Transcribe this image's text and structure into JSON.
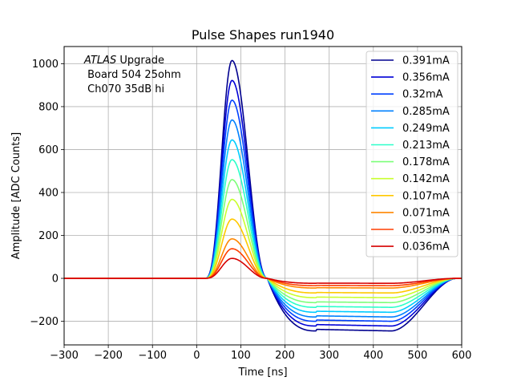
{
  "chart_data": {
    "type": "line",
    "title": "Pulse Shapes run1940",
    "xlabel": "Time [ns]",
    "ylabel": "Amplitude [ADC Counts]",
    "xlim": [
      -300,
      600
    ],
    "ylim": [
      -310,
      1080
    ],
    "xticks": [
      -300,
      -200,
      -100,
      0,
      100,
      200,
      300,
      400,
      500,
      600
    ],
    "yticks": [
      -200,
      0,
      200,
      400,
      600,
      800,
      1000
    ],
    "xtick_labels": [
      "−300",
      "−200",
      "−100",
      "0",
      "100",
      "200",
      "300",
      "400",
      "500",
      "600"
    ],
    "ytick_labels": [
      "−200",
      "0",
      "200",
      "400",
      "600",
      "800",
      "1000"
    ],
    "grid": true,
    "legend_position": "top-right",
    "annotation": {
      "experiment": "ATLAS",
      "experiment_suffix": " Upgrade",
      "line2": " Board 504 25ohm",
      "line3": " Ch070 35dB hi"
    },
    "pulse_model": {
      "rise_start_ns": 18,
      "peak_time_ns": 80,
      "zero_crossing_ns": 160,
      "undershoot_plateau_start_ns": 270,
      "undershoot_plateau_end_ns": 440,
      "recovery_end_ns": 590
    },
    "series": [
      {
        "name": "0.391mA",
        "color": "#00008f",
        "peak": 1015,
        "undershoot": -245
      },
      {
        "name": "0.356mA",
        "color": "#0000d6",
        "peak": 922,
        "undershoot": -222
      },
      {
        "name": "0.32mA",
        "color": "#0040ff",
        "peak": 830,
        "undershoot": -200
      },
      {
        "name": "0.285mA",
        "color": "#0080ff",
        "peak": 738,
        "undershoot": -180
      },
      {
        "name": "0.249mA",
        "color": "#00ccff",
        "peak": 645,
        "undershoot": -158
      },
      {
        "name": "0.213mA",
        "color": "#2cffca",
        "peak": 553,
        "undershoot": -135
      },
      {
        "name": "0.178mA",
        "color": "#7cff79",
        "peak": 460,
        "undershoot": -113
      },
      {
        "name": "0.142mA",
        "color": "#c9ff2f",
        "peak": 368,
        "undershoot": -90
      },
      {
        "name": "0.107mA",
        "color": "#ffc800",
        "peak": 276,
        "undershoot": -68
      },
      {
        "name": "0.071mA",
        "color": "#ff8600",
        "peak": 184,
        "undershoot": -45
      },
      {
        "name": "0.053mA",
        "color": "#ff3f00",
        "peak": 138,
        "undershoot": -34
      },
      {
        "name": "0.036mA",
        "color": "#d60000",
        "peak": 93,
        "undershoot": -23
      }
    ]
  }
}
